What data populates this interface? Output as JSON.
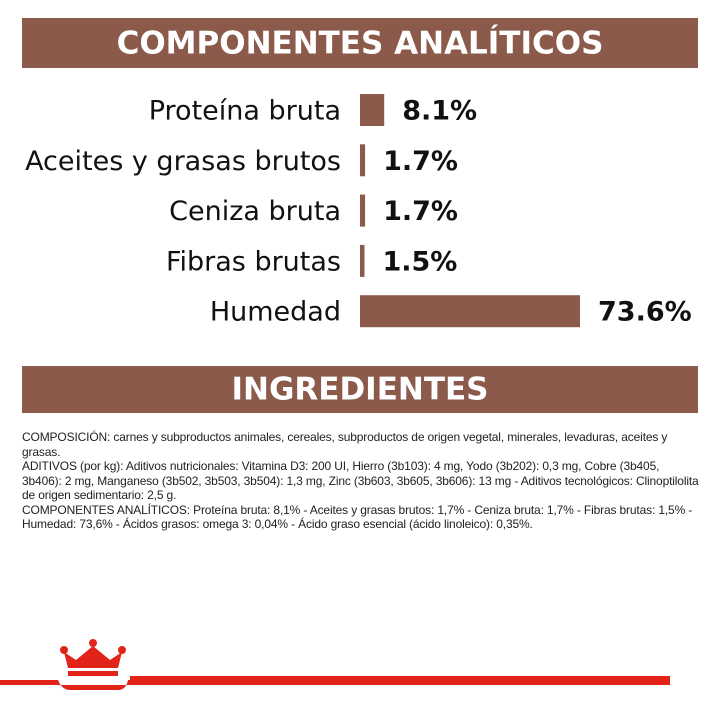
{
  "chart_data": {
    "type": "bar",
    "title": "COMPONENTES ANALÍTICOS",
    "categories": [
      "Proteína bruta",
      "Aceites y grasas brutos",
      "Ceniza bruta",
      "Fibras brutas",
      "Humedad"
    ],
    "values": [
      8.1,
      1.7,
      1.7,
      1.5,
      73.6
    ],
    "value_labels": [
      "8.1%",
      "1.7%",
      "1.7%",
      "1.5%",
      "73.6%"
    ],
    "color": "#8b5a4b"
  },
  "ingredients": {
    "title": "INGREDIENTES",
    "paragraphs": [
      "COMPOSICIÓN: carnes y subproductos animales, cereales, subproductos de origen vegetal, minerales, levaduras, aceites y grasas.",
      "ADITIVOS (por kg): Aditivos nutricionales: Vitamina D3: 200 UI, Hierro (3b103): 4 mg, Yodo (3b202): 0,3 mg, Cobre (3b405, 3b406): 2 mg, Manganeso (3b502, 3b503, 3b504): 1,3 mg, Zinc (3b603, 3b605, 3b606): 13 mg - Aditivos tecnológicos: Clinoptilolita de origen sedimentario: 2,5 g.",
      "COMPONENTES ANALÍTICOS: Proteína bruta: 8,1% - Aceites y grasas brutos: 1,7% - Ceniza bruta: 1,7% - Fibras brutas: 1,5% - Humedad: 73,6% - Ácidos grasos: omega 3: 0,04% - Ácido graso esencial (ácido linoleico): 0,35%."
    ]
  }
}
